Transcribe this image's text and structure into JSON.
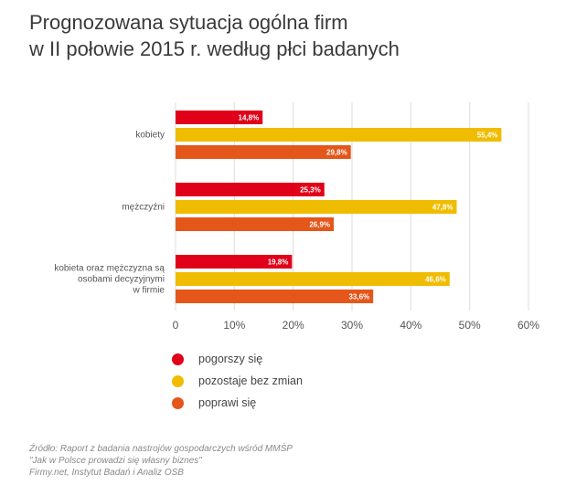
{
  "title_lines": [
    "Prognozowana sytuacja ogólna firm",
    "w II połowie 2015 r. według płci badanych"
  ],
  "chart_data": {
    "type": "bar",
    "orientation": "horizontal",
    "groups": [
      {
        "label_lines": [
          "kobiety"
        ]
      },
      {
        "label_lines": [
          "mężczyźni"
        ]
      },
      {
        "label_lines": [
          "kobieta oraz mężczyzna są",
          "osobami  decyzyjnymi",
          "w firmie"
        ]
      }
    ],
    "series": [
      {
        "name": "pogorszy się",
        "color": "#e1001a",
        "values": [
          14.8,
          25.3,
          19.8
        ],
        "labels": [
          "14,8%",
          "25,3%",
          "19,8%"
        ]
      },
      {
        "name": "pozostaje bez zmian",
        "color": "#f0bc00",
        "values": [
          55.4,
          47.8,
          46.6
        ],
        "labels": [
          "55,4%",
          "47,8%",
          "46,6%"
        ]
      },
      {
        "name": "poprawi się",
        "color": "#e4561a",
        "values": [
          29.8,
          26.9,
          33.6
        ],
        "labels": [
          "29,8%",
          "26,9%",
          "33,6%"
        ]
      }
    ],
    "xlim": [
      0,
      60
    ],
    "ticks": [
      0,
      10,
      20,
      30,
      40,
      50,
      60
    ],
    "tick_labels": [
      "0",
      "10%",
      "20%",
      "30%",
      "40%",
      "50%",
      "60%"
    ],
    "grid": true,
    "legend_position": "bottom-left"
  },
  "source_lines": [
    "Źródło: Raport z badania nastrojów gospodarczych wśród MMŚP",
    "\"Jak w Polsce prowadzi się własny biznes\"",
    "Firmy.net, Instytut Badań i Analiz OSB"
  ]
}
